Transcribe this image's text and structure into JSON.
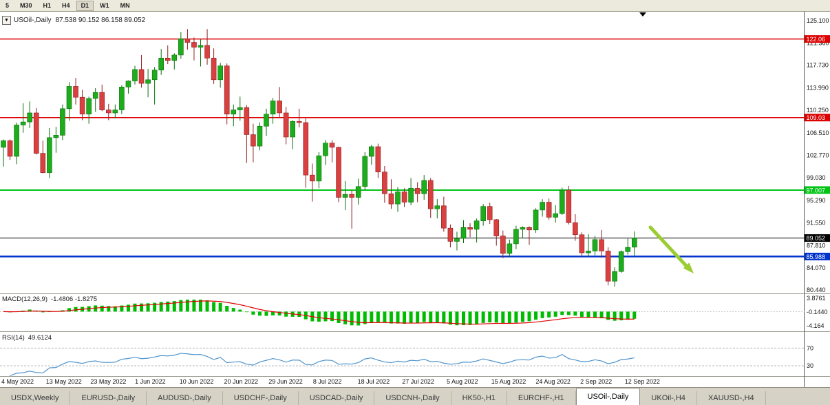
{
  "toolbar": {
    "timeframes": [
      "5",
      "M30",
      "H1",
      "H4",
      "D1",
      "W1",
      "MN"
    ],
    "active": "D1"
  },
  "chart": {
    "title": "USOil-,Daily",
    "ohlc_label": "87.538 90.152 86.158 89.052",
    "macd_name": "MACD(12,26,9)",
    "macd_values": "-1.4806 -1.8275",
    "rsi_name": "RSI(14)",
    "rsi_value": "49.6124"
  },
  "chart_data": {
    "type": "candlestick",
    "symbol": "USOil-",
    "period": "Daily",
    "current_ohlc": {
      "open": 87.538,
      "high": 90.152,
      "low": 86.158,
      "close": 89.052
    },
    "bull_color": "#1cac1c",
    "bear_color": "#d94040",
    "price_axis_ticks": [
      "125.100",
      "121.360",
      "117.730",
      "113.990",
      "110.250",
      "106.510",
      "102.770",
      "99.030",
      "95.290",
      "91.550",
      "87.810",
      "84.070",
      "80.440"
    ],
    "date_axis_ticks": [
      "4 May 2022",
      "13 May 2022",
      "23 May 2022",
      "1 Jun 2022",
      "10 Jun 2022",
      "20 Jun 2022",
      "29 Jun 2022",
      "8 Jul 2022",
      "18 Jul 2022",
      "27 Jul 2022",
      "5 Aug 2022",
      "15 Aug 2022",
      "24 Aug 2022",
      "2 Sep 2022",
      "12 Sep 2022"
    ],
    "horizontal_lines": [
      {
        "price": 122.06,
        "label": "122.06",
        "color": "#dd0000",
        "width": 1.5
      },
      {
        "price": 109.03,
        "label": "109.03",
        "color": "#dd0000",
        "width": 1.5
      },
      {
        "price": 97.007,
        "label": "97.007",
        "color": "#00c414",
        "width": 2
      },
      {
        "price": 85.988,
        "label": "85.988",
        "color": "#0033cc",
        "width": 2.5
      }
    ],
    "current_price_line": {
      "price": 89.052,
      "label": "89.052",
      "color": "#000000"
    },
    "indicators": {
      "macd": {
        "name": "MACD(12,26,9)",
        "params": [
          12,
          26,
          9
        ],
        "current_values": [
          -1.4806,
          -1.8275
        ],
        "axis_ticks": [
          "3.8761",
          "-0.1440",
          "-4.164"
        ],
        "histogram_color": "#00bc00",
        "signal_color": "#e00000"
      },
      "rsi": {
        "name": "RSI(14)",
        "period": 14,
        "current_value": 49.6124,
        "levels": [
          70,
          30
        ],
        "line_color": "#4f94cd"
      }
    },
    "annotations": [
      {
        "type": "arrow-down-right",
        "color": "#9acd32"
      }
    ],
    "candles_ohlc": [
      [
        104.1,
        105.4,
        100.9,
        105.2
      ],
      [
        105.2,
        105.4,
        102.0,
        102.6
      ],
      [
        102.6,
        108.2,
        101.3,
        107.8
      ],
      [
        107.8,
        111.4,
        106.5,
        108.3
      ],
      [
        108.3,
        111.7,
        107.3,
        109.8
      ],
      [
        109.8,
        110.6,
        102.9,
        103.1
      ],
      [
        103.1,
        105.2,
        99.8,
        99.9
      ],
      [
        99.9,
        107.3,
        99.0,
        105.7
      ],
      [
        105.7,
        107.5,
        103.2,
        106.1
      ],
      [
        106.1,
        111.2,
        105.3,
        110.5
      ],
      [
        110.5,
        114.9,
        108.5,
        114.2
      ],
      [
        114.2,
        115.6,
        111.2,
        112.4
      ],
      [
        112.4,
        113.6,
        108.6,
        109.6
      ],
      [
        109.6,
        112.5,
        108.0,
        112.2
      ],
      [
        112.2,
        113.9,
        110.0,
        113.2
      ],
      [
        113.2,
        114.5,
        110.1,
        110.3
      ],
      [
        110.3,
        111.3,
        108.6,
        109.8
      ],
      [
        109.8,
        111.2,
        108.9,
        110.3
      ],
      [
        110.3,
        114.4,
        109.6,
        114.1
      ],
      [
        114.1,
        115.2,
        113.0,
        115.1
      ],
      [
        115.1,
        117.6,
        114.5,
        117.0
      ],
      [
        117.0,
        119.4,
        114.0,
        114.7
      ],
      [
        114.7,
        117.1,
        112.4,
        115.3
      ],
      [
        115.3,
        117.4,
        111.2,
        116.9
      ],
      [
        116.9,
        120.4,
        116.1,
        118.9
      ],
      [
        118.9,
        121.0,
        117.9,
        118.5
      ],
      [
        118.5,
        119.7,
        117.0,
        119.4
      ],
      [
        119.4,
        123.2,
        118.8,
        122.1
      ],
      [
        122.1,
        123.7,
        120.3,
        121.5
      ],
      [
        121.5,
        122.3,
        118.5,
        120.7
      ],
      [
        120.7,
        122.0,
        117.5,
        121.0
      ],
      [
        121.0,
        123.7,
        117.8,
        118.9
      ],
      [
        118.9,
        120.5,
        114.6,
        115.3
      ],
      [
        115.3,
        118.1,
        114.0,
        117.6
      ],
      [
        117.6,
        118.0,
        107.9,
        109.6
      ],
      [
        109.6,
        111.2,
        107.6,
        110.3
      ],
      [
        110.3,
        112.5,
        108.5,
        110.7
      ],
      [
        110.7,
        111.1,
        101.5,
        106.2
      ],
      [
        106.2,
        108.0,
        101.6,
        104.3
      ],
      [
        104.3,
        108.2,
        103.6,
        107.6
      ],
      [
        107.6,
        110.5,
        106.0,
        109.6
      ],
      [
        109.6,
        112.3,
        108.0,
        111.8
      ],
      [
        111.8,
        114.1,
        109.1,
        109.8
      ],
      [
        109.8,
        110.8,
        104.6,
        105.8
      ],
      [
        105.8,
        108.6,
        103.8,
        108.4
      ],
      [
        108.4,
        110.5,
        107.4,
        108.2
      ],
      [
        108.2,
        108.9,
        97.4,
        99.5
      ],
      [
        99.5,
        101.4,
        95.1,
        98.5
      ],
      [
        98.5,
        103.3,
        97.3,
        102.7
      ],
      [
        102.7,
        105.3,
        101.2,
        104.8
      ],
      [
        104.8,
        105.3,
        101.6,
        104.1
      ],
      [
        104.1,
        104.2,
        95.0,
        95.8
      ],
      [
        95.8,
        98.5,
        93.7,
        96.3
      ],
      [
        96.3,
        97.0,
        90.6,
        95.8
      ],
      [
        95.8,
        98.9,
        94.6,
        97.6
      ],
      [
        97.6,
        103.3,
        97.0,
        102.6
      ],
      [
        102.6,
        104.5,
        101.2,
        104.2
      ],
      [
        104.2,
        104.7,
        99.0,
        100.0
      ],
      [
        100.0,
        101.0,
        94.9,
        96.4
      ],
      [
        96.4,
        98.8,
        93.9,
        94.7
      ],
      [
        94.7,
        97.5,
        93.4,
        96.7
      ],
      [
        96.7,
        97.3,
        94.2,
        95.0
      ],
      [
        95.0,
        99.0,
        94.5,
        97.3
      ],
      [
        97.3,
        98.3,
        95.0,
        96.4
      ],
      [
        96.4,
        99.5,
        95.4,
        98.6
      ],
      [
        98.6,
        99.0,
        92.4,
        93.9
      ],
      [
        93.9,
        95.5,
        92.3,
        94.4
      ],
      [
        94.4,
        95.9,
        90.1,
        90.7
      ],
      [
        90.7,
        91.3,
        87.5,
        88.5
      ],
      [
        88.5,
        90.1,
        87.0,
        89.0
      ],
      [
        89.0,
        92.0,
        88.2,
        90.8
      ],
      [
        90.8,
        91.5,
        89.2,
        90.5
      ],
      [
        90.5,
        92.3,
        88.3,
        91.9
      ],
      [
        91.9,
        94.7,
        91.1,
        94.3
      ],
      [
        94.3,
        94.9,
        91.4,
        92.1
      ],
      [
        92.1,
        92.2,
        87.8,
        89.4
      ],
      [
        89.4,
        90.3,
        85.7,
        86.5
      ],
      [
        86.5,
        88.8,
        85.9,
        88.1
      ],
      [
        88.1,
        91.1,
        87.2,
        90.5
      ],
      [
        90.5,
        91.0,
        89.0,
        90.8
      ],
      [
        90.8,
        91.0,
        87.9,
        90.4
      ],
      [
        90.4,
        94.0,
        89.9,
        93.7
      ],
      [
        93.7,
        95.5,
        92.6,
        95.0
      ],
      [
        95.0,
        95.6,
        92.1,
        92.5
      ],
      [
        92.5,
        94.5,
        91.6,
        93.1
      ],
      [
        93.1,
        97.4,
        92.9,
        97.0
      ],
      [
        97.0,
        97.7,
        91.3,
        91.6
      ],
      [
        91.6,
        93.0,
        88.6,
        89.6
      ],
      [
        89.6,
        90.0,
        85.9,
        86.6
      ],
      [
        86.6,
        89.7,
        86.0,
        86.9
      ],
      [
        86.9,
        89.4,
        86.2,
        88.8
      ],
      [
        88.8,
        90.4,
        85.8,
        86.9
      ],
      [
        86.9,
        87.5,
        81.2,
        81.9
      ],
      [
        81.9,
        84.2,
        81.0,
        83.5
      ],
      [
        83.5,
        87.0,
        83.3,
        86.8
      ],
      [
        86.8,
        89.1,
        86.3,
        87.5
      ],
      [
        87.538,
        90.152,
        86.158,
        89.052
      ]
    ]
  },
  "tabs": {
    "items": [
      "USDX,Weekly",
      "EURUSD-,Daily",
      "AUDUSD-,Daily",
      "USDCHF-,Daily",
      "USDCAD-,Daily",
      "USDCNH-,Daily",
      "HK50-,H1",
      "EURCHF-,H1",
      "USOil-,Daily",
      "UKOil-,H4",
      "XAUUSD-,H4"
    ],
    "active": "USOil-,Daily"
  }
}
